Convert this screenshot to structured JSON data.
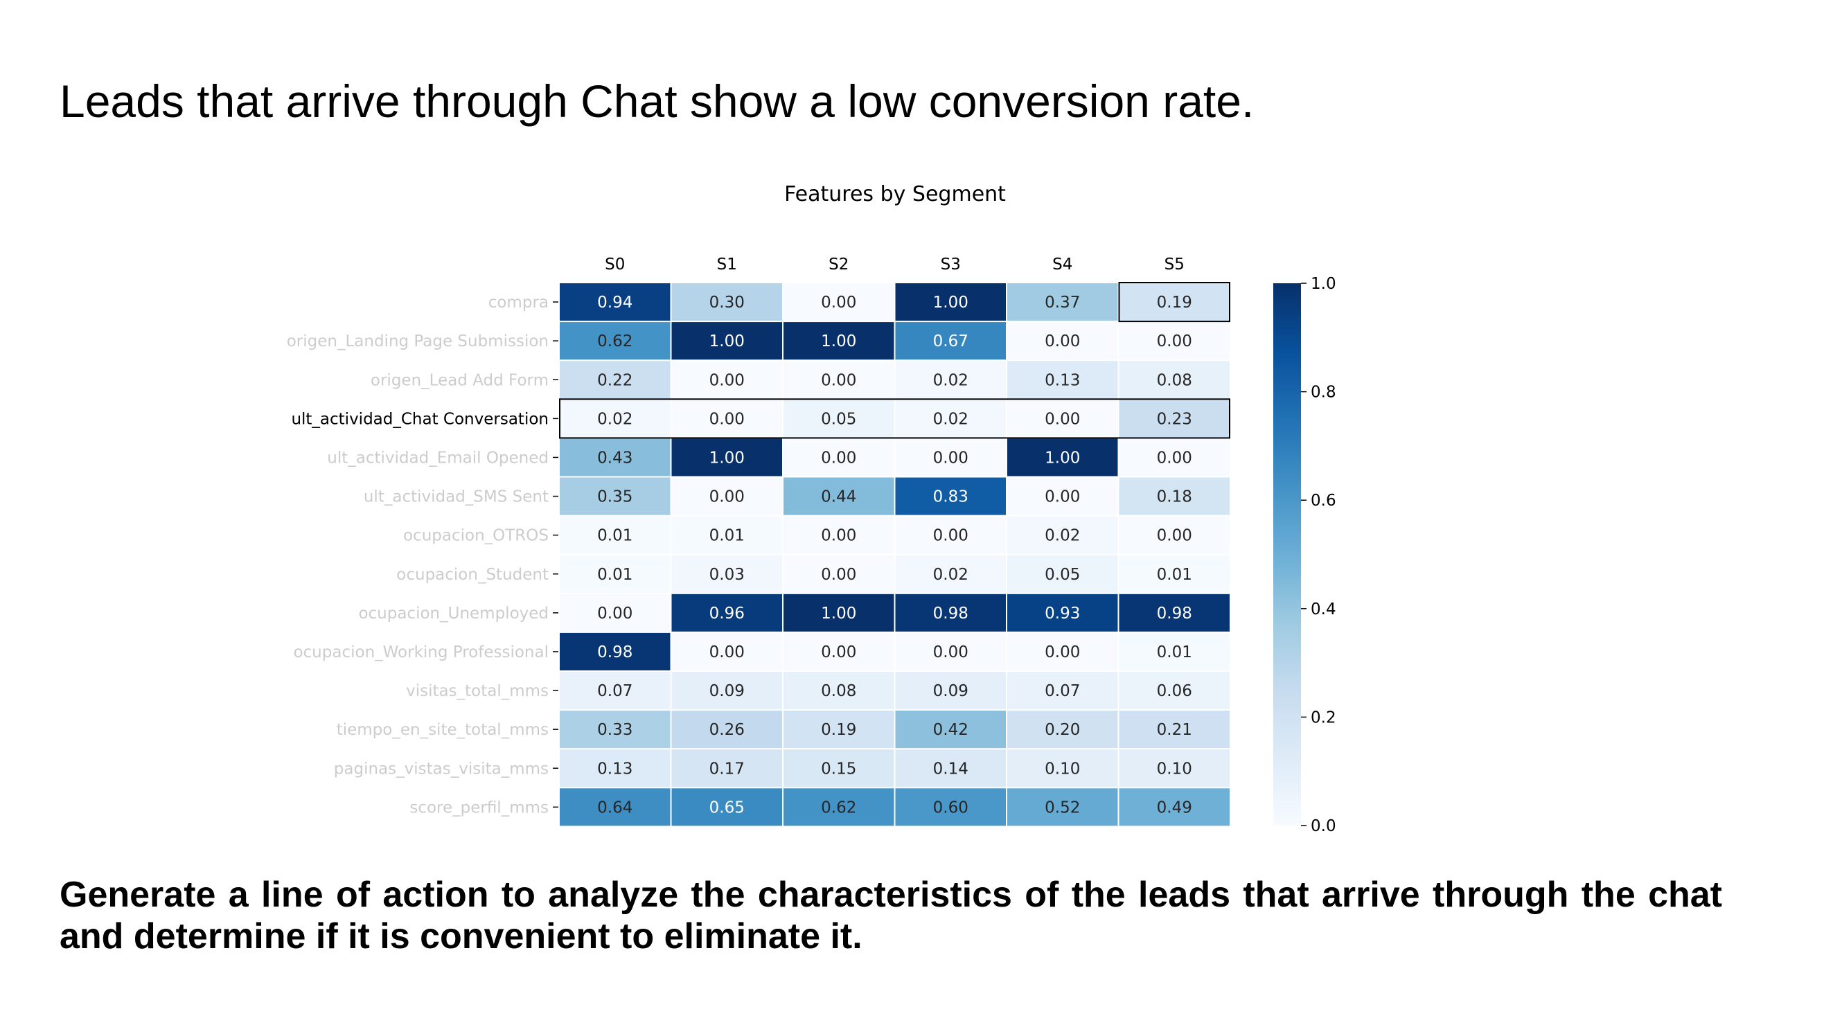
{
  "slide": {
    "title": "Leads that arrive through Chat show a low conversion rate.",
    "body": "Generate a line of action to analyze the characteristics of the leads that arrive through the chat and determine if it is convenient to eliminate it."
  },
  "chart_data": {
    "type": "heatmap",
    "title": "Features by Segment",
    "xlabel": "",
    "ylabel": "",
    "columns": [
      "S0",
      "S1",
      "S2",
      "S3",
      "S4",
      "S5"
    ],
    "rows": [
      "compra",
      "origen_Landing Page Submission",
      "origen_Lead Add Form",
      "ult_actividad_Chat Conversation",
      "ult_actividad_Email Opened",
      "ult_actividad_SMS Sent",
      "ocupacion_OTROS",
      "ocupacion_Student",
      "ocupacion_Unemployed",
      "ocupacion_Working Professional",
      "visitas_total_mms",
      "tiempo_en_site_total_mms",
      "paginas_vistas_visita_mms",
      "score_perfil_mms"
    ],
    "values": [
      [
        0.94,
        0.3,
        0.0,
        1.0,
        0.37,
        0.19
      ],
      [
        0.62,
        1.0,
        1.0,
        0.67,
        0.0,
        0.0
      ],
      [
        0.22,
        0.0,
        0.0,
        0.02,
        0.13,
        0.08
      ],
      [
        0.02,
        0.0,
        0.05,
        0.02,
        0.0,
        0.23
      ],
      [
        0.43,
        1.0,
        0.0,
        0.0,
        1.0,
        0.0
      ],
      [
        0.35,
        0.0,
        0.44,
        0.83,
        0.0,
        0.18
      ],
      [
        0.01,
        0.01,
        0.0,
        0.0,
        0.02,
        0.0
      ],
      [
        0.01,
        0.03,
        0.0,
        0.02,
        0.05,
        0.01
      ],
      [
        0.0,
        0.96,
        1.0,
        0.98,
        0.93,
        0.98
      ],
      [
        0.98,
        0.0,
        0.0,
        0.0,
        0.0,
        0.01
      ],
      [
        0.07,
        0.09,
        0.08,
        0.09,
        0.07,
        0.06
      ],
      [
        0.33,
        0.26,
        0.19,
        0.42,
        0.2,
        0.21
      ],
      [
        0.13,
        0.17,
        0.15,
        0.14,
        0.1,
        0.1
      ],
      [
        0.64,
        0.65,
        0.62,
        0.6,
        0.52,
        0.49
      ]
    ],
    "value_format": "0.00",
    "colormap": "Blues",
    "vmin": 0.0,
    "vmax": 1.0,
    "colorbar_ticks": [
      "0.0",
      "0.2",
      "0.4",
      "0.6",
      "0.8",
      "1.0"
    ],
    "x_axis_position": "top",
    "highlighted_row": "ult_actividad_Chat Conversation",
    "highlighted_cell": {
      "row": "compra",
      "column": "S5"
    },
    "row_label_color_default": "#cccccc",
    "row_label_color_highlight": "#000000",
    "grid": false
  }
}
